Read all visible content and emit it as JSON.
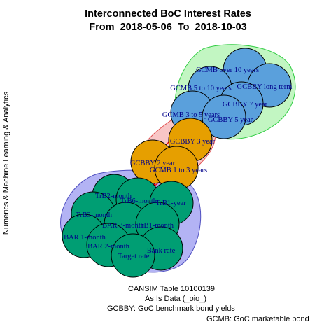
{
  "title": {
    "line1": "Interconnected BoC Interest Rates",
    "line2": "From_2018-05-06_To_2018-10-03"
  },
  "side_label": "Numerics & Machine Learning & Analytics",
  "captions": {
    "source": "CANSIM Table 10100139",
    "data_note": "As Is Data (_oio_)",
    "gcbby_def": "GCBBY: GoC benchmark bond yields",
    "gcmb_def": "GCMB: GoC marketable bond"
  },
  "colors": {
    "blue_group_fill": "#5aa0dc",
    "orange_group_fill": "#e69f00",
    "green_group_fill": "#009e73",
    "blue_hull": "#90ee90",
    "bridge_hull": "#f4a0a0",
    "green_hull": "#9a9af0",
    "edge_red": "#ff0000",
    "label_color": "#00008b"
  },
  "nodes": [
    {
      "id": "gcmb_over10",
      "label": "GCMB over 10 years",
      "group": "blue"
    },
    {
      "id": "gcbby_long",
      "label": "GCBBY long term",
      "group": "blue"
    },
    {
      "id": "gcmb_5to10",
      "label": "GCMB 5 to 10 years",
      "group": "blue"
    },
    {
      "id": "gcbby_7",
      "label": "GCBBY 7 year",
      "group": "blue"
    },
    {
      "id": "gcmb_3to5",
      "label": "GCMB 3 to 5 years",
      "group": "blue"
    },
    {
      "id": "gcbby_5",
      "label": "GCBBY 5 year",
      "group": "blue"
    },
    {
      "id": "gcbby_3",
      "label": "GCBBY 3 year",
      "group": "orange"
    },
    {
      "id": "gcbby_2",
      "label": "GCBBY 2 year",
      "group": "orange"
    },
    {
      "id": "gcmb_1to3",
      "label": "GCMB 1 to 3 years",
      "group": "orange"
    },
    {
      "id": "tb2m",
      "label": "TrB2-month",
      "group": "green"
    },
    {
      "id": "tb6m",
      "label": "TrB6-month",
      "group": "green"
    },
    {
      "id": "tb1y",
      "label": "TrB1-year",
      "group": "green"
    },
    {
      "id": "tb3m",
      "label": "TrB3-month",
      "group": "green"
    },
    {
      "id": "bar3m",
      "label": "BAR 3-month",
      "group": "green"
    },
    {
      "id": "tb1m",
      "label": "TrB1-month",
      "group": "green"
    },
    {
      "id": "bar1m",
      "label": "BAR 1-month",
      "group": "green"
    },
    {
      "id": "bar2m",
      "label": "BAR 2-month",
      "group": "green"
    },
    {
      "id": "bank",
      "label": "Bank rate",
      "group": "green"
    },
    {
      "id": "target",
      "label": "Target rate",
      "group": "green"
    }
  ],
  "edges": [
    [
      "gcbby_3",
      "gcbby_2"
    ],
    [
      "gcbby_3",
      "gcmb_1to3"
    ],
    [
      "gcbby_2",
      "gcmb_1to3"
    ],
    [
      "gcbby_3",
      "gcmb_3to5"
    ],
    [
      "gcbby_3",
      "gcbby_5"
    ],
    [
      "gcbby_3",
      "gcbby_7"
    ],
    [
      "gcbby_3",
      "gcmb_5to10"
    ],
    [
      "gcmb_1to3",
      "gcmb_3to5"
    ],
    [
      "gcmb_1to3",
      "gcbby_5"
    ],
    [
      "gcbby_2",
      "gcmb_3to5"
    ],
    [
      "gcbby_2",
      "gcbby_5"
    ],
    [
      "gcbby_2",
      "tb6m"
    ],
    [
      "gcbby_2",
      "tb1y"
    ],
    [
      "gcbby_2",
      "bar3m"
    ],
    [
      "gcbby_2",
      "tb1m"
    ],
    [
      "gcmb_1to3",
      "tb1y"
    ],
    [
      "gcmb_1to3",
      "tb6m"
    ],
    [
      "gcmb_1to3",
      "bar3m"
    ],
    [
      "gcmb_1to3",
      "tb1m"
    ],
    [
      "gcmb_over10",
      "gcbby_long"
    ],
    [
      "gcmb_over10",
      "gcmb_5to10"
    ],
    [
      "gcbby_long",
      "gcbby_7"
    ],
    [
      "gcmb_5to10",
      "gcbby_7"
    ],
    [
      "gcmb_3to5",
      "gcbby_5"
    ],
    [
      "gcbby_7",
      "gcbby_5"
    ]
  ]
}
